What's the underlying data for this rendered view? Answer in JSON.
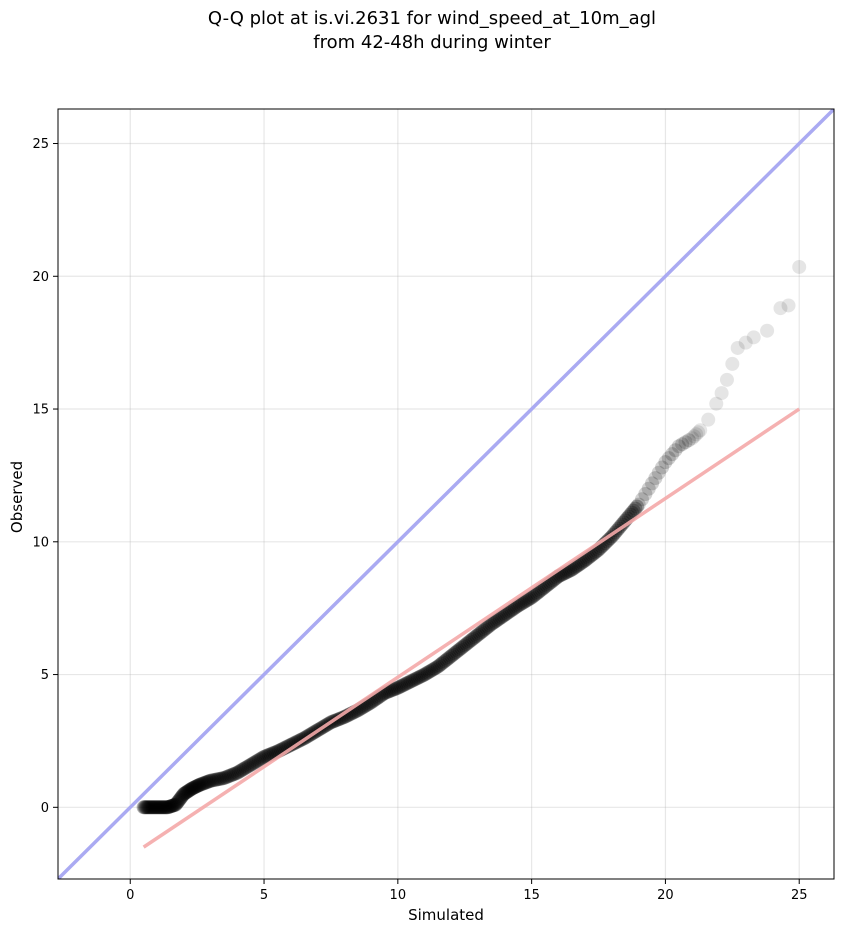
{
  "chart_data": {
    "type": "scatter",
    "title": [
      "Q-Q plot at is.vi.2631 for wind_speed_at_10m_agl",
      "from 42-48h during winter"
    ],
    "xlabel": "Simulated",
    "ylabel": "Observed",
    "xlim": [
      -2.7,
      26.3
    ],
    "ylim": [
      -2.7,
      26.3
    ],
    "x_ticks": [
      0,
      5,
      10,
      15,
      20,
      25
    ],
    "y_ticks": [
      0,
      5,
      10,
      15,
      20,
      25
    ],
    "grid": true,
    "colors": {
      "points": "#000000",
      "identity_line": "#aaaaf2",
      "fit_line": "#f4a9a9"
    },
    "identity_line": {
      "x": [
        -2.7,
        26.3
      ],
      "y": [
        -2.7,
        26.3
      ]
    },
    "fit_line": {
      "x": [
        0.5,
        25.0
      ],
      "y": [
        -1.5,
        15.0
      ]
    },
    "quantiles_x": [
      0.5,
      0.8,
      1.1,
      1.4,
      1.7,
      2.0,
      2.3,
      2.6,
      3.0,
      3.5,
      4.0,
      4.5,
      5.0,
      5.5,
      6.0,
      6.5,
      7.0,
      7.5,
      8.0,
      8.5,
      9.0,
      9.5,
      10.0,
      10.5,
      11.0,
      11.5,
      12.0,
      12.5,
      13.0,
      13.5,
      14.0,
      14.5,
      15.0,
      15.5,
      16.0,
      16.5,
      17.0,
      17.5,
      18.0,
      18.5,
      19.0,
      19.5,
      20.0,
      20.5,
      21.0,
      21.3,
      21.6,
      21.9,
      22.1,
      22.3,
      22.5,
      22.7,
      23.0,
      23.3,
      23.8,
      24.3,
      24.6,
      25.0
    ],
    "quantiles_y": [
      0.0,
      0.0,
      0.0,
      0.0,
      0.1,
      0.5,
      0.7,
      0.85,
      1.0,
      1.1,
      1.3,
      1.6,
      1.9,
      2.1,
      2.35,
      2.6,
      2.9,
      3.2,
      3.4,
      3.65,
      3.95,
      4.3,
      4.5,
      4.75,
      5.0,
      5.3,
      5.7,
      6.1,
      6.5,
      6.9,
      7.25,
      7.6,
      7.9,
      8.3,
      8.7,
      8.95,
      9.3,
      9.7,
      10.2,
      10.8,
      11.4,
      12.2,
      13.0,
      13.6,
      13.9,
      14.2,
      14.6,
      15.2,
      15.6,
      16.1,
      16.7,
      17.3,
      17.5,
      17.7,
      17.95,
      18.8,
      18.9,
      20.35
    ]
  }
}
